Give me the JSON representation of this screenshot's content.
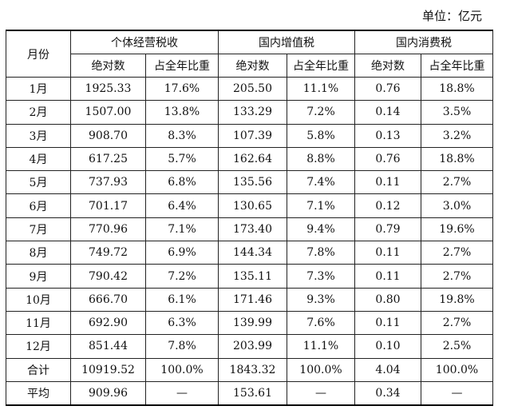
{
  "unit_label": "单位：亿元",
  "header": {
    "month": "月份",
    "groups": [
      "个体经营税收",
      "国内增值税",
      "国内消费税"
    ],
    "sub": [
      "绝对数",
      "占全年比重",
      "绝对数",
      "占全年比重",
      "绝对数",
      "占全年比重"
    ]
  },
  "rows": [
    [
      "1月",
      "1925.33",
      "17.6%",
      "205.50",
      "11.1%",
      "0.76",
      "18.8%"
    ],
    [
      "2月",
      "1507.00",
      "13.8%",
      "133.29",
      "7.2%",
      "0.14",
      "3.5%"
    ],
    [
      "3月",
      "908.70",
      "8.3%",
      "107.39",
      "5.8%",
      "0.13",
      "3.2%"
    ],
    [
      "4月",
      "617.25",
      "5.7%",
      "162.64",
      "8.8%",
      "0.76",
      "18.8%"
    ],
    [
      "5月",
      "737.93",
      "6.8%",
      "135.56",
      "7.4%",
      "0.11",
      "2.7%"
    ],
    [
      "6月",
      "701.17",
      "6.4%",
      "130.65",
      "7.1%",
      "0.12",
      "3.0%"
    ],
    [
      "7月",
      "770.96",
      "7.1%",
      "173.40",
      "9.4%",
      "0.79",
      "19.6%"
    ],
    [
      "8月",
      "749.72",
      "6.9%",
      "144.34",
      "7.8%",
      "0.11",
      "2.7%"
    ],
    [
      "9月",
      "790.42",
      "7.2%",
      "135.11",
      "7.3%",
      "0.11",
      "2.7%"
    ],
    [
      "10月",
      "666.70",
      "6.1%",
      "171.46",
      "9.3%",
      "0.80",
      "19.8%"
    ],
    [
      "11月",
      "692.90",
      "6.3%",
      "139.99",
      "7.6%",
      "0.11",
      "2.7%"
    ],
    [
      "12月",
      "851.44",
      "7.8%",
      "203.99",
      "11.1%",
      "0.10",
      "2.5%"
    ],
    [
      "合计",
      "10919.52",
      "100.0%",
      "1843.32",
      "100.0%",
      "4.04",
      "100.0%"
    ],
    [
      "平均",
      "909.96",
      "—",
      "153.61",
      "—",
      "0.34",
      "—"
    ]
  ]
}
